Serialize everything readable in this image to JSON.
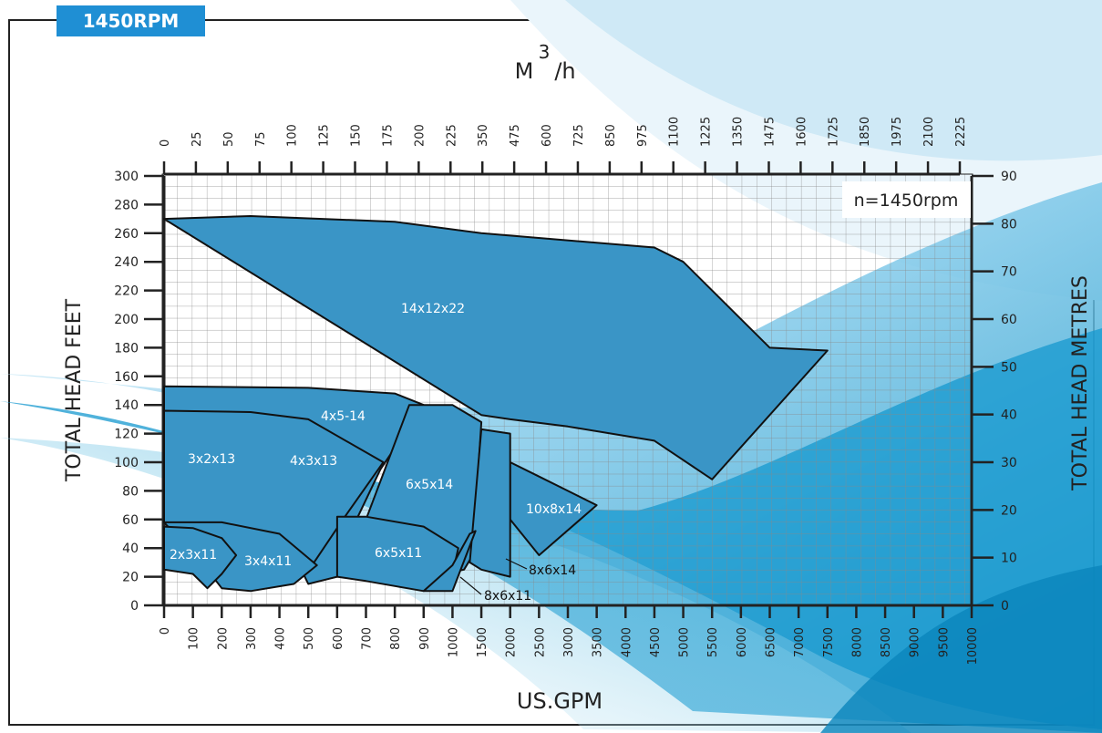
{
  "rpm_tab": "1450RPM",
  "chart_data": {
    "type": "area",
    "title": "",
    "annotation": "n=1450rpm",
    "top_axis": {
      "label_main": "M",
      "label_sup": "3",
      "label_tail": "/h",
      "ticks": [
        "0",
        "25",
        "50",
        "75",
        "100",
        "125",
        "150",
        "175",
        "200",
        "225",
        "350",
        "475",
        "600",
        "725",
        "850",
        "975",
        "1100",
        "1225",
        "1350",
        "1475",
        "1600",
        "1725",
        "1850",
        "1975",
        "2100",
        "2225"
      ]
    },
    "bottom_axis": {
      "label": "US.GPM",
      "ticks": [
        "0",
        "100",
        "200",
        "300",
        "400",
        "500",
        "600",
        "700",
        "800",
        "900",
        "1000",
        "1500",
        "2000",
        "2500",
        "3000",
        "3500",
        "4000",
        "4500",
        "5000",
        "5500",
        "6000",
        "6500",
        "7000",
        "7500",
        "8000",
        "8500",
        "9000",
        "9500",
        "10000"
      ]
    },
    "left_axis": {
      "label": "TOTAL HEAD FEET",
      "ticks": [
        "0",
        "20",
        "40",
        "60",
        "80",
        "100",
        "120",
        "140",
        "160",
        "180",
        "200",
        "220",
        "240",
        "260",
        "280",
        "300"
      ],
      "ylim": [
        0,
        300
      ]
    },
    "right_axis": {
      "label": "TOTAL HEAD METRES",
      "ticks": [
        "0",
        "10",
        "20",
        "30",
        "40",
        "50",
        "60",
        "70",
        "80",
        "90"
      ],
      "ylim": [
        0,
        90
      ]
    },
    "grid": true,
    "series": [
      {
        "name": "14x12x22",
        "points": [
          [
            0,
            270
          ],
          [
            300,
            272
          ],
          [
            800,
            268
          ],
          [
            1500,
            260
          ],
          [
            4500,
            250
          ],
          [
            5000,
            240
          ],
          [
            5500,
            220
          ],
          [
            6500,
            180
          ],
          [
            7500,
            178
          ],
          [
            5500,
            88
          ],
          [
            4500,
            115
          ],
          [
            3000,
            125
          ],
          [
            2000,
            130
          ],
          [
            1500,
            133
          ]
        ]
      },
      {
        "name": "4x5-14",
        "points": [
          [
            0,
            153
          ],
          [
            500,
            152
          ],
          [
            800,
            148
          ],
          [
            900,
            140
          ],
          [
            750,
            95
          ],
          [
            620,
            40
          ],
          [
            600,
            20
          ],
          [
            500,
            15
          ],
          [
            440,
            40
          ],
          [
            400,
            75
          ],
          [
            300,
            95
          ],
          [
            200,
            113
          ],
          [
            0,
            125
          ]
        ]
      },
      {
        "name": "3x2x13",
        "points": [
          [
            0,
            128
          ],
          [
            120,
            125
          ],
          [
            200,
            113
          ],
          [
            240,
            100
          ],
          [
            180,
            60
          ],
          [
            150,
            55
          ],
          [
            100,
            58
          ],
          [
            0,
            58
          ]
        ]
      },
      {
        "name": "4x3x13",
        "points": [
          [
            0,
            136
          ],
          [
            300,
            135
          ],
          [
            500,
            130
          ],
          [
            760,
            100
          ],
          [
            620,
            60
          ],
          [
            520,
            30
          ],
          [
            450,
            25
          ],
          [
            350,
            50
          ],
          [
            250,
            55
          ],
          [
            180,
            57
          ],
          [
            0,
            58
          ]
        ]
      },
      {
        "name": "6x5x14",
        "points": [
          [
            850,
            140
          ],
          [
            1000,
            140
          ],
          [
            1500,
            128
          ],
          [
            1350,
            35
          ],
          [
            1200,
            25
          ],
          [
            900,
            20
          ],
          [
            750,
            28
          ],
          [
            700,
            60
          ]
        ]
      },
      {
        "name": "10x8x14",
        "points": [
          [
            2000,
            100
          ],
          [
            2500,
            90
          ],
          [
            3000,
            80
          ],
          [
            3500,
            70
          ],
          [
            2500,
            35
          ],
          [
            2000,
            60
          ]
        ]
      },
      {
        "name": "8x6x14",
        "points": [
          [
            1500,
            123
          ],
          [
            2000,
            120
          ],
          [
            2000,
            20
          ],
          [
            1500,
            25
          ],
          [
            1300,
            30
          ]
        ]
      },
      {
        "name": "6x5x11",
        "points": [
          [
            600,
            62
          ],
          [
            700,
            62
          ],
          [
            900,
            55
          ],
          [
            1100,
            40
          ],
          [
            1000,
            22
          ],
          [
            900,
            10
          ],
          [
            700,
            17
          ],
          [
            600,
            20
          ]
        ]
      },
      {
        "name": "8x6x11",
        "points": [
          [
            1000,
            28
          ],
          [
            1300,
            50
          ],
          [
            1400,
            52
          ],
          [
            1000,
            10
          ],
          [
            900,
            10
          ]
        ]
      },
      {
        "name": "3x4x11",
        "points": [
          [
            0,
            58
          ],
          [
            200,
            58
          ],
          [
            400,
            50
          ],
          [
            530,
            28
          ],
          [
            450,
            15
          ],
          [
            300,
            10
          ],
          [
            200,
            12
          ],
          [
            150,
            25
          ]
        ]
      },
      {
        "name": "2x3x11",
        "points": [
          [
            0,
            55
          ],
          [
            100,
            54
          ],
          [
            200,
            47
          ],
          [
            250,
            35
          ],
          [
            200,
            22
          ],
          [
            150,
            12
          ],
          [
            100,
            22
          ],
          [
            0,
            25
          ]
        ]
      }
    ]
  }
}
